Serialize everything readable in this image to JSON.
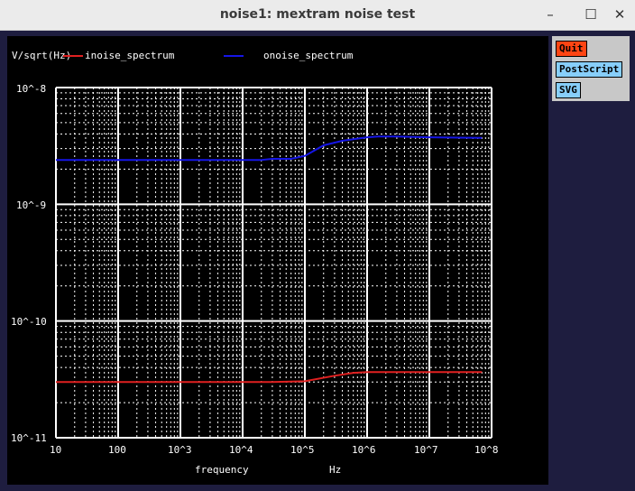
{
  "window": {
    "title": "noise1: mextram noise test",
    "minimize_glyph": "–",
    "maximize_glyph": "☐",
    "close_glyph": "✕"
  },
  "buttons": {
    "quit": "Quit",
    "postscript": "PostScript",
    "svg": "SVG"
  },
  "colors": {
    "plot_bg": "#000000",
    "grid": "#ffffff",
    "inoise": "#e02020",
    "onoise": "#1515e6",
    "quit_btn": "#ff4513",
    "export_btn": "#87cefa"
  },
  "chart_data": {
    "type": "line",
    "ylabel": "V/sqrt(Hz)",
    "xlabel": "frequency",
    "xunit": "Hz",
    "xscale": "log",
    "yscale": "log",
    "xlim": [
      10,
      100000000
    ],
    "ylim": [
      1e-11,
      1e-08
    ],
    "grid": true,
    "legend_position": "top",
    "x_ticks": [
      "10",
      "100",
      "10^3",
      "10^4",
      "10^5",
      "10^6",
      "10^7",
      "10^8"
    ],
    "y_ticks": [
      "10^-8",
      "10^-9",
      "10^-10",
      "10^-11"
    ],
    "series": [
      {
        "name": "inoise_spectrum",
        "color": "#e02020",
        "x": [
          10,
          100,
          1000,
          10000,
          30000,
          100000,
          300000,
          600000,
          1000000,
          3000000,
          10000000,
          70000000
        ],
        "y": [
          3e-11,
          3e-11,
          3e-11,
          3e-11,
          3e-11,
          3.05e-11,
          3.4e-11,
          3.6e-11,
          3.65e-11,
          3.65e-11,
          3.65e-11,
          3.65e-11
        ]
      },
      {
        "name": "onoise_spectrum",
        "color": "#1515e6",
        "x": [
          10,
          100,
          1000,
          10000,
          20000,
          30000,
          60000,
          100000,
          200000,
          400000,
          700000,
          1000000,
          1500000,
          3000000,
          10000000,
          70000000
        ],
        "y": [
          2.4e-09,
          2.4e-09,
          2.4e-09,
          2.4e-09,
          2.4e-09,
          2.45e-09,
          2.45e-09,
          2.6e-09,
          3.2e-09,
          3.5e-09,
          3.65e-09,
          3.75e-09,
          3.8e-09,
          3.8e-09,
          3.75e-09,
          3.7e-09
        ]
      }
    ]
  }
}
